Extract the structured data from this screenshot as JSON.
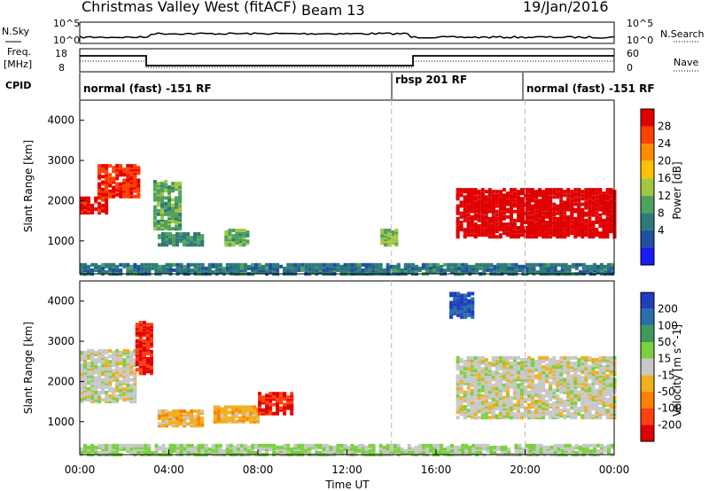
{
  "header": {
    "station": "Christmas Valley West (fitACF)",
    "beam": "Beam 13",
    "date": "19/Jan/2016"
  },
  "panels": {
    "nsky_label": "N.Sky",
    "nsky_ticks": [
      "10^5",
      "10^0"
    ],
    "nsky_right_ticks": [
      "10^5",
      "10^0"
    ],
    "nsearch_label": "N.Search",
    "freq_label": [
      "Freq.",
      "[MHz]"
    ],
    "freq_ticks": [
      "18",
      "8"
    ],
    "nave_ticks": [
      "60",
      "0"
    ],
    "nave_label": "Nave",
    "cpid_label": "CPID",
    "cpid_segments": [
      "normal (fast) -151 RF",
      "rbsp 201 RF",
      "normal (fast) -151 RF"
    ]
  },
  "axes": {
    "ylabel": "Slant Range [km]",
    "yticks": [
      "4000",
      "3000",
      "2000",
      "1000"
    ],
    "xlabel": "Time UT",
    "xticks": [
      "00:00",
      "04:00",
      "08:00",
      "12:00",
      "16:00",
      "20:00",
      "00:00"
    ]
  },
  "power_scale": {
    "title": "Power [dB]",
    "ticks": [
      "28",
      "24",
      "20",
      "16",
      "12",
      "8",
      "4"
    ],
    "colors": [
      "#e00000",
      "#ff4000",
      "#ff8c00",
      "#ffc000",
      "#a0c840",
      "#50a060",
      "#2e7a78",
      "#2050a0",
      "#1a1aff"
    ]
  },
  "velocity_scale": {
    "title": "Velocity [m s^-1]",
    "ticks": [
      "200",
      "100",
      "50",
      "15",
      "-15",
      "-50",
      "-100",
      "-200"
    ],
    "colors": [
      "#1f3fbf",
      "#2a6fa8",
      "#3f9a5a",
      "#7ad040",
      "#c8c8c8",
      "#f0b020",
      "#ff8000",
      "#ff4010",
      "#e00000"
    ]
  },
  "chart_data": [
    {
      "type": "heatmap",
      "title": "Power [dB]",
      "xlabel": "Time UT",
      "ylabel": "Slant Range [km]",
      "xlim": [
        0,
        24
      ],
      "ylim": [
        180,
        4500
      ],
      "colorbar_range": [
        0,
        30
      ],
      "regions": [
        {
          "t0": 0.0,
          "t1": 1.2,
          "r0": 1700,
          "r1": 2100,
          "value": 28
        },
        {
          "t0": 0.8,
          "t1": 2.6,
          "r0": 2100,
          "r1": 2900,
          "value": 26
        },
        {
          "t0": 3.3,
          "t1": 4.5,
          "r0": 1300,
          "r1": 2500,
          "value": 12
        },
        {
          "t0": 3.5,
          "t1": 5.5,
          "r0": 900,
          "r1": 1200,
          "value": 10
        },
        {
          "t0": 6.5,
          "t1": 7.6,
          "r0": 900,
          "r1": 1300,
          "value": 12
        },
        {
          "t0": 13.5,
          "t1": 14.3,
          "r0": 900,
          "r1": 1300,
          "value": 14
        },
        {
          "t0": 16.9,
          "t1": 24.0,
          "r0": 1100,
          "r1": 2300,
          "value": 30
        },
        {
          "t0": 0.0,
          "t1": 24.0,
          "r0": 180,
          "r1": 420,
          "value": 8
        }
      ]
    },
    {
      "type": "heatmap",
      "title": "Velocity [m s^-1]",
      "xlabel": "Time UT",
      "ylabel": "Slant Range [km]",
      "xlim": [
        0,
        24
      ],
      "ylim": [
        180,
        4500
      ],
      "colorbar_range": [
        -250,
        250
      ],
      "regions": [
        {
          "t0": 0.0,
          "t1": 2.5,
          "r0": 1500,
          "r1": 2800,
          "value": 0
        },
        {
          "t0": 2.5,
          "t1": 3.3,
          "r0": 2200,
          "r1": 3500,
          "value": -200
        },
        {
          "t0": 3.5,
          "t1": 5.5,
          "r0": 900,
          "r1": 1300,
          "value": -50
        },
        {
          "t0": 6.0,
          "t1": 8.0,
          "r0": 1000,
          "r1": 1400,
          "value": -60
        },
        {
          "t0": 8.0,
          "t1": 9.6,
          "r0": 1200,
          "r1": 1700,
          "value": -200
        },
        {
          "t0": 16.9,
          "t1": 24.0,
          "r0": 1100,
          "r1": 2600,
          "value": 0
        },
        {
          "t0": 16.6,
          "t1": 17.6,
          "r0": 3600,
          "r1": 4200,
          "value": 200
        },
        {
          "t0": 0.0,
          "t1": 24.0,
          "r0": 180,
          "r1": 420,
          "value": 30
        }
      ]
    }
  ]
}
